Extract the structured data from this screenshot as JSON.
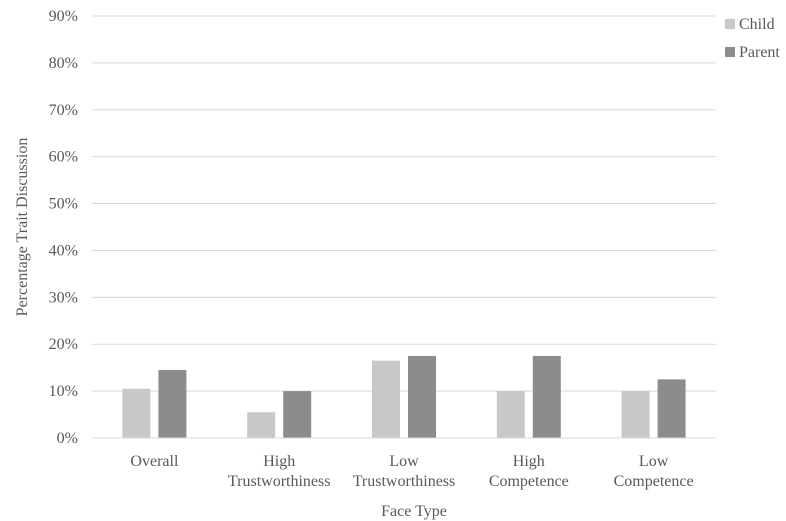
{
  "chart_data": {
    "type": "bar",
    "title": "",
    "xlabel": "Face Type",
    "ylabel": "Percentage Trait Discussion",
    "ylim": [
      0,
      90
    ],
    "yticks": [
      "0%",
      "10%",
      "20%",
      "30%",
      "40%",
      "50%",
      "60%",
      "70%",
      "80%",
      "90%"
    ],
    "y_tick_values": [
      0,
      10,
      20,
      30,
      40,
      50,
      60,
      70,
      80,
      90
    ],
    "grid": true,
    "legend_position": "top-right",
    "categories": [
      [
        "Overall"
      ],
      [
        "High",
        "Trustworthiness"
      ],
      [
        "Low",
        "Trustworthiness"
      ],
      [
        "High",
        "Competence"
      ],
      [
        "Low",
        "Competence"
      ]
    ],
    "series": [
      {
        "name": "Child",
        "color": "#c8c8c8",
        "values": [
          10.5,
          5.5,
          16.5,
          10,
          10
        ]
      },
      {
        "name": "Parent",
        "color": "#8c8c8c",
        "values": [
          14.5,
          10,
          17.5,
          17.5,
          12.5
        ]
      }
    ]
  }
}
